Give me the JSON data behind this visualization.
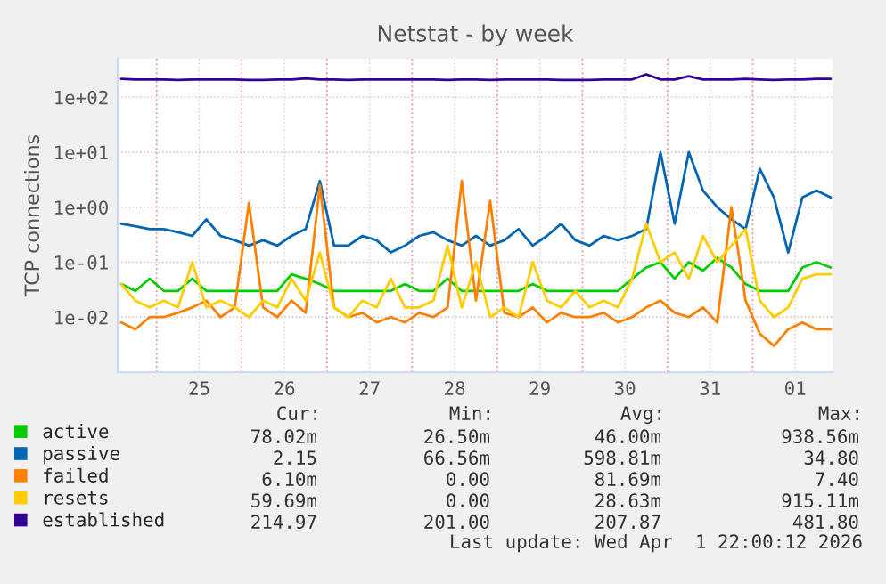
{
  "chart_data": {
    "type": "line",
    "title": "Netstat - by week",
    "ylabel": "TCP connections",
    "x": [
      "2026-03-24T14:00",
      "2026-03-24T18:00",
      "2026-03-24T22:00",
      "2026-03-25T02:00",
      "2026-03-25T06:00",
      "2026-03-25T10:00",
      "2026-03-25T14:00",
      "2026-03-25T18:00",
      "2026-03-25T22:00",
      "2026-03-26T02:00",
      "2026-03-26T06:00",
      "2026-03-26T10:00",
      "2026-03-26T14:00",
      "2026-03-26T18:00",
      "2026-03-26T22:00",
      "2026-03-27T02:00",
      "2026-03-27T06:00",
      "2026-03-27T10:00",
      "2026-03-27T14:00",
      "2026-03-27T18:00",
      "2026-03-27T22:00",
      "2026-03-28T02:00",
      "2026-03-28T06:00",
      "2026-03-28T10:00",
      "2026-03-28T14:00",
      "2026-03-28T18:00",
      "2026-03-28T22:00",
      "2026-03-29T02:00",
      "2026-03-29T06:00",
      "2026-03-29T10:00",
      "2026-03-29T14:00",
      "2026-03-29T18:00",
      "2026-03-29T22:00",
      "2026-03-30T02:00",
      "2026-03-30T06:00",
      "2026-03-30T10:00",
      "2026-03-30T14:00",
      "2026-03-30T18:00",
      "2026-03-30T22:00",
      "2026-03-31T02:00",
      "2026-03-31T06:00",
      "2026-03-31T10:00",
      "2026-03-31T14:00",
      "2026-03-31T18:00",
      "2026-03-31T22:00",
      "2026-04-01T02:00",
      "2026-04-01T06:00",
      "2026-04-01T10:00",
      "2026-04-01T14:00",
      "2026-04-01T18:00",
      "2026-04-01T22:00"
    ],
    "series": [
      {
        "name": "active",
        "color": "#00cc00",
        "values": [
          0.04,
          0.03,
          0.05,
          0.03,
          0.03,
          0.05,
          0.03,
          0.03,
          0.03,
          0.03,
          0.03,
          0.03,
          0.06,
          0.05,
          0.04,
          0.03,
          0.03,
          0.03,
          0.03,
          0.03,
          0.04,
          0.03,
          0.03,
          0.05,
          0.03,
          0.03,
          0.03,
          0.03,
          0.03,
          0.04,
          0.03,
          0.03,
          0.03,
          0.03,
          0.03,
          0.03,
          0.05,
          0.08,
          0.1,
          0.05,
          0.1,
          0.07,
          0.12,
          0.08,
          0.04,
          0.03,
          0.03,
          0.03,
          0.08,
          0.1,
          0.08
        ]
      },
      {
        "name": "passive",
        "color": "#0066b3",
        "values": [
          0.5,
          0.45,
          0.4,
          0.4,
          0.35,
          0.3,
          0.6,
          0.3,
          0.25,
          0.2,
          0.25,
          0.2,
          0.3,
          0.4,
          3.0,
          0.2,
          0.2,
          0.3,
          0.25,
          0.15,
          0.2,
          0.3,
          0.35,
          0.25,
          0.2,
          0.3,
          0.2,
          0.25,
          0.4,
          0.2,
          0.3,
          0.5,
          0.25,
          0.2,
          0.3,
          0.25,
          0.3,
          0.4,
          10,
          0.5,
          10,
          2.0,
          1.0,
          0.6,
          0.4,
          5.0,
          1.5,
          0.15,
          1.5,
          2.0,
          1.5
        ]
      },
      {
        "name": "failed",
        "color": "#ff8000",
        "values": [
          0.008,
          0.006,
          0.01,
          0.01,
          0.012,
          0.015,
          0.02,
          0.01,
          0.015,
          1.2,
          0.015,
          0.01,
          0.02,
          0.012,
          2.5,
          0.015,
          0.01,
          0.012,
          0.008,
          0.01,
          0.008,
          0.012,
          0.01,
          0.015,
          3.0,
          0.02,
          1.3,
          0.012,
          0.01,
          0.015,
          0.008,
          0.012,
          0.01,
          0.01,
          0.012,
          0.008,
          0.01,
          0.015,
          0.02,
          0.012,
          0.01,
          0.015,
          0.008,
          1.0,
          0.02,
          0.005,
          0.003,
          0.006,
          0.008,
          0.006,
          0.006
        ]
      },
      {
        "name": "resets",
        "color": "#ffcc00",
        "values": [
          0.04,
          0.02,
          0.015,
          0.02,
          0.015,
          0.1,
          0.015,
          0.02,
          0.015,
          0.01,
          0.02,
          0.015,
          0.05,
          0.02,
          0.15,
          0.015,
          0.01,
          0.02,
          0.015,
          0.05,
          0.015,
          0.015,
          0.02,
          0.2,
          0.015,
          0.1,
          0.01,
          0.015,
          0.01,
          0.1,
          0.02,
          0.015,
          0.03,
          0.015,
          0.02,
          0.015,
          0.05,
          0.5,
          0.1,
          0.15,
          0.05,
          0.3,
          0.1,
          0.2,
          0.4,
          0.02,
          0.01,
          0.015,
          0.05,
          0.06,
          0.06
        ]
      },
      {
        "name": "established",
        "color": "#330099",
        "values": [
          215,
          210,
          210,
          210,
          205,
          210,
          210,
          210,
          210,
          205,
          205,
          210,
          210,
          220,
          210,
          210,
          205,
          210,
          210,
          210,
          210,
          210,
          210,
          205,
          210,
          210,
          205,
          210,
          210,
          210,
          210,
          205,
          205,
          205,
          210,
          210,
          210,
          260,
          210,
          210,
          240,
          210,
          210,
          210,
          215,
          210,
          205,
          210,
          210,
          215,
          215
        ]
      }
    ],
    "log": "y",
    "ylim": [
      0.001,
      500
    ],
    "yticks": [
      {
        "value": 0.01,
        "label": "1e-02"
      },
      {
        "value": 0.1,
        "label": "1e-01"
      },
      {
        "value": 1,
        "label": "1e+00"
      },
      {
        "value": 10,
        "label": "1e+01"
      },
      {
        "value": 100,
        "label": "1e+02"
      }
    ],
    "xlim": [
      "2026-03-24T13:00",
      "2026-04-01T22:30"
    ],
    "xticks": [
      {
        "value": "2026-03-25T00:00",
        "label": null
      },
      {
        "value": "2026-03-25T12:00",
        "label": "25"
      },
      {
        "value": "2026-03-26T00:00",
        "label": null
      },
      {
        "value": "2026-03-26T12:00",
        "label": "26"
      },
      {
        "value": "2026-03-27T00:00",
        "label": null
      },
      {
        "value": "2026-03-27T12:00",
        "label": "27"
      },
      {
        "value": "2026-03-28T00:00",
        "label": null
      },
      {
        "value": "2026-03-28T12:00",
        "label": "28"
      },
      {
        "value": "2026-03-29T00:00",
        "label": null
      },
      {
        "value": "2026-03-29T12:00",
        "label": "29"
      },
      {
        "value": "2026-03-30T00:00",
        "label": null
      },
      {
        "value": "2026-03-30T12:00",
        "label": "30"
      },
      {
        "value": "2026-03-31T00:00",
        "label": null
      },
      {
        "value": "2026-03-31T12:00",
        "label": "31"
      },
      {
        "value": "2026-04-01T00:00",
        "label": null
      },
      {
        "value": "2026-04-01T12:00",
        "label": "01"
      }
    ],
    "grid": true,
    "legend": "bottom left",
    "marker": "none",
    "line_style": "solid",
    "annotations": [
      "Cur:",
      "Min:",
      "Avg:",
      "Max:",
      "78.02m",
      "26.50m",
      "46.00m",
      "938.56m",
      "2.15",
      "66.56m",
      "598.81m",
      "34.80",
      "6.10m",
      "0.00",
      "81.69m",
      "7.40",
      "59.69m",
      "0.00",
      "28.63m",
      "915.11m",
      "214.97",
      "201.00",
      "207.87",
      "481.80",
      "Last update: Wed Apr  1 22:00:12 2026"
    ]
  }
}
